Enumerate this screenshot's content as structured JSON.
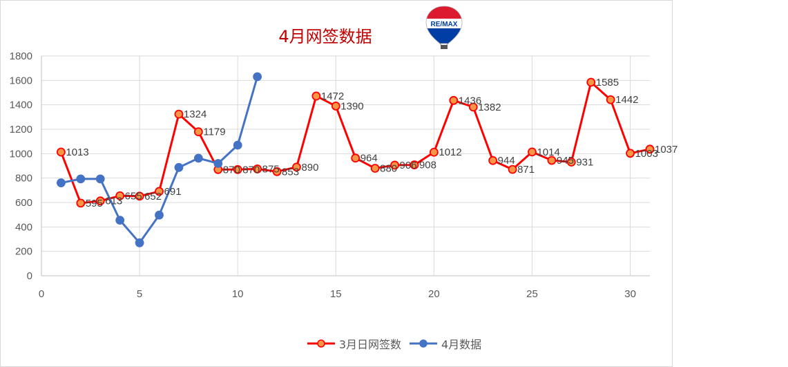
{
  "chart_data": {
    "type": "line",
    "title": "4月网签数据",
    "xlabel": "",
    "ylabel": "",
    "xlim": [
      0,
      31
    ],
    "ylim": [
      0,
      1800
    ],
    "x_ticks": [
      0,
      5,
      10,
      15,
      20,
      25,
      30
    ],
    "y_ticks": [
      0,
      200,
      400,
      600,
      800,
      1000,
      1200,
      1400,
      1600,
      1800
    ],
    "grid": true,
    "legend_position": "bottom",
    "series": [
      {
        "name": "3月日网签数",
        "color": "#ff0000",
        "marker_fill": "#f79646",
        "show_labels": true,
        "points": [
          [
            1,
            1013
          ],
          [
            2,
            595
          ],
          [
            3,
            613
          ],
          [
            4,
            655
          ],
          [
            5,
            652
          ],
          [
            6,
            691
          ],
          [
            7,
            1324
          ],
          [
            8,
            1179
          ],
          [
            9,
            870
          ],
          [
            10,
            870
          ],
          [
            11,
            875
          ],
          [
            12,
            853
          ],
          [
            13,
            890
          ],
          [
            14,
            1472
          ],
          [
            15,
            1390
          ],
          [
            16,
            964
          ],
          [
            17,
            880
          ],
          [
            18,
            906
          ],
          [
            19,
            908
          ],
          [
            20,
            1012
          ],
          [
            21,
            1436
          ],
          [
            22,
            1382
          ],
          [
            23,
            944
          ],
          [
            24,
            871
          ],
          [
            25,
            1014
          ],
          [
            26,
            945
          ],
          [
            27,
            931
          ],
          [
            28,
            1585
          ],
          [
            29,
            1442
          ],
          [
            30,
            1003
          ],
          [
            31,
            1037
          ]
        ]
      },
      {
        "name": "4月数据",
        "color": "#4472c4",
        "marker_fill": "#4472c4",
        "show_labels": false,
        "points": [
          [
            1,
            761
          ],
          [
            2,
            793
          ],
          [
            3,
            793
          ],
          [
            4,
            455
          ],
          [
            5,
            270
          ],
          [
            6,
            497
          ],
          [
            7,
            887
          ],
          [
            8,
            963
          ],
          [
            9,
            920
          ],
          [
            10,
            1070
          ],
          [
            11,
            1630
          ]
        ]
      }
    ]
  },
  "logo": {
    "text": "RE/MAX",
    "colors": [
      "#dc1c2e",
      "#ffffff",
      "#003da5"
    ]
  }
}
